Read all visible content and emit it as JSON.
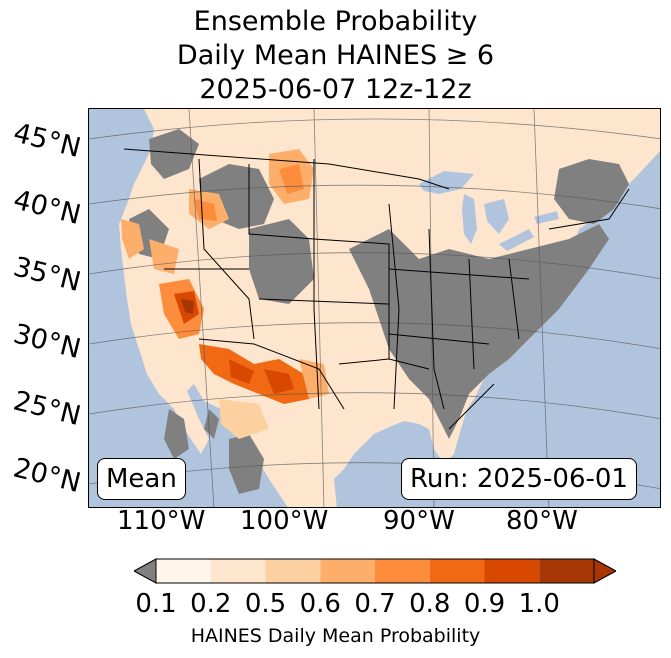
{
  "title": {
    "line1": "Ensemble Probability",
    "line2": "Daily Mean HAINES ≥ 6",
    "line3": "2025-06-07 12z-12z"
  },
  "lat_labels": [
    "45°N",
    "40°N",
    "35°N",
    "30°N",
    "25°N",
    "20°N"
  ],
  "lon_labels": [
    "110°W",
    "100°W",
    "90°W",
    "80°W"
  ],
  "boxes": {
    "left": "Mean",
    "right": "Run: 2025-06-01"
  },
  "colorbar": {
    "ticks": [
      "0.1",
      "0.2",
      "0.5",
      "0.6",
      "0.7",
      "0.8",
      "0.9",
      "1.0"
    ],
    "label": "HAINES Daily Mean Probability",
    "under_color": "#808080",
    "colors": [
      "#fff5eb",
      "#fee6ce",
      "#fdd0a2",
      "#fdae6b",
      "#fd8d3c",
      "#f16913",
      "#d94801",
      "#a63603"
    ]
  },
  "colors": {
    "ocean": "#b0c4de",
    "land_low": "#fee6ce",
    "no_data": "#808080"
  }
}
